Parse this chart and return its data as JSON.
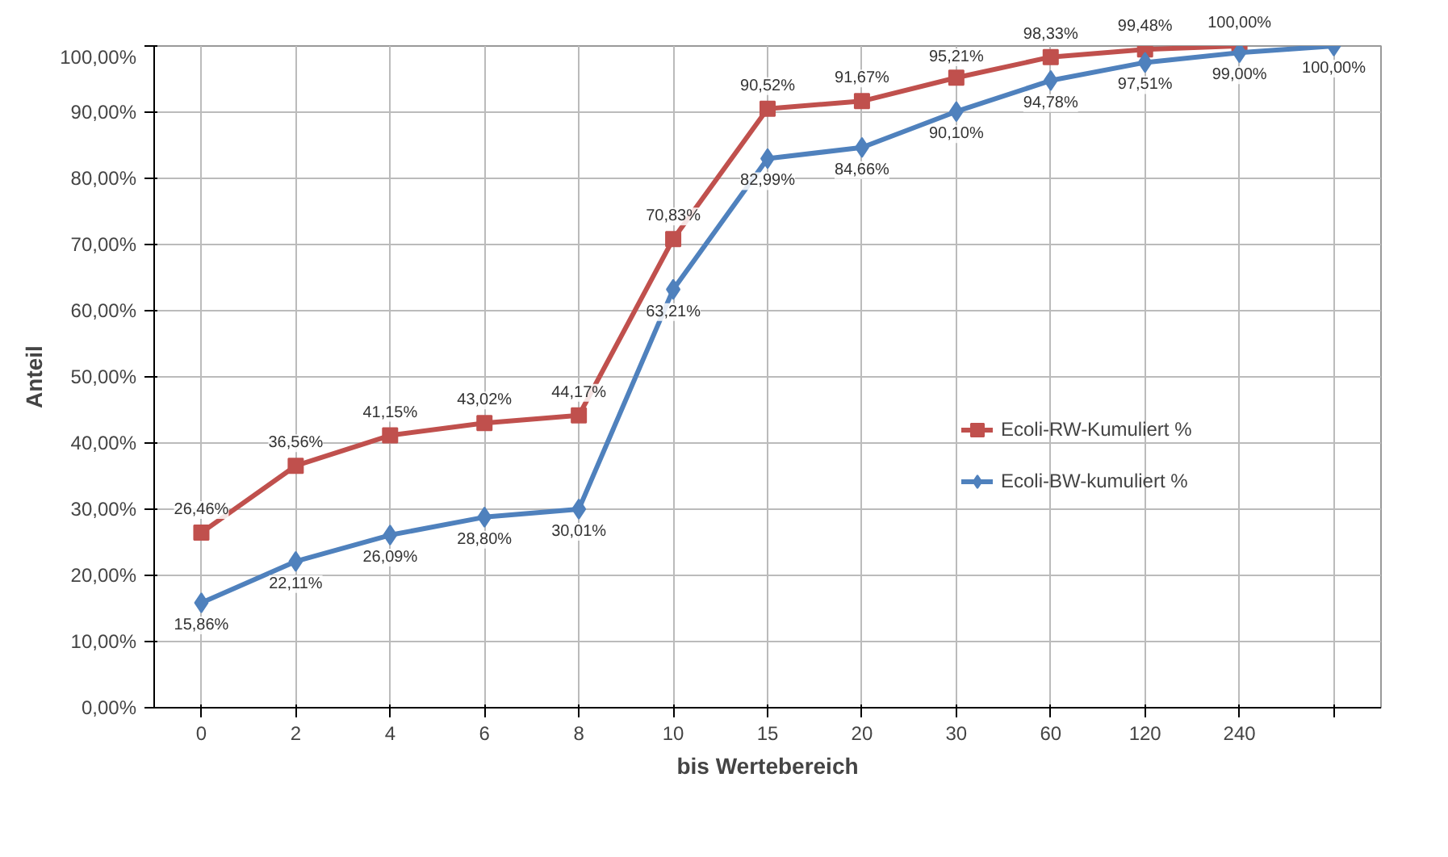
{
  "chart_data": {
    "type": "line",
    "xlabel": "bis Wertebereich",
    "ylabel": "Anteil",
    "categories": [
      "0",
      "2",
      "4",
      "6",
      "8",
      "10",
      "15",
      "20",
      "30",
      "60",
      "120",
      "240",
      null
    ],
    "series": [
      {
        "name": "Ecoli-RW-Kumuliert %",
        "color": "#c0504d",
        "marker": "square",
        "values": [
          26.46,
          36.56,
          41.15,
          43.02,
          44.17,
          70.83,
          90.52,
          91.67,
          95.21,
          98.33,
          99.48,
          100.0,
          null
        ],
        "value_labels": [
          "26,46%",
          "36,56%",
          "41,15%",
          "43,02%",
          "44,17%",
          "70,83%",
          "90,52%",
          "91,67%",
          "95,21%",
          "98,33%",
          "99,48%",
          "100,00%",
          null
        ]
      },
      {
        "name": "Ecoli-BW-kumuliert %",
        "color": "#4f81bd",
        "marker": "diamond",
        "values": [
          15.86,
          22.11,
          26.09,
          28.8,
          30.01,
          63.21,
          82.99,
          84.66,
          90.1,
          94.78,
          97.51,
          99.0,
          100.0
        ],
        "value_labels": [
          "15,86%",
          "22,11%",
          "26,09%",
          "28,80%",
          "30,01%",
          "63,21%",
          "82,99%",
          "84,66%",
          "90,10%",
          "94,78%",
          "97,51%",
          "99,00%",
          "100,00%"
        ]
      }
    ],
    "ylim": [
      0,
      100
    ],
    "yticks": [
      {
        "value": 0,
        "label": "0,00%"
      },
      {
        "value": 10,
        "label": "10,00%"
      },
      {
        "value": 20,
        "label": "20,00%"
      },
      {
        "value": 30,
        "label": "30,00%"
      },
      {
        "value": 40,
        "label": "40,00%"
      },
      {
        "value": 50,
        "label": "50,00%"
      },
      {
        "value": 60,
        "label": "60,00%"
      },
      {
        "value": 70,
        "label": "70,00%"
      },
      {
        "value": 80,
        "label": "80,00%"
      },
      {
        "value": 90,
        "label": "90,00%"
      },
      {
        "value": 100,
        "label": "100,00%"
      }
    ],
    "grid": true,
    "legend": "right",
    "line_style": "solid"
  }
}
